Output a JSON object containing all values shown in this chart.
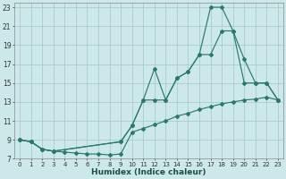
{
  "xlabel": "Humidex (Indice chaleur)",
  "bg_color": "#cce8e8",
  "grid_color": "#aacccc",
  "line_color": "#2a7a6a",
  "xlim": [
    -0.5,
    23.5
  ],
  "ylim": [
    7,
    23.5
  ],
  "yticks": [
    7,
    9,
    11,
    13,
    15,
    17,
    19,
    21,
    23
  ],
  "xticks": [
    0,
    1,
    2,
    3,
    4,
    5,
    6,
    7,
    8,
    9,
    10,
    11,
    12,
    13,
    14,
    15,
    16,
    17,
    18,
    19,
    20,
    21,
    22,
    23
  ],
  "line1_x": [
    0,
    1,
    2,
    3,
    4,
    5,
    6,
    7,
    8,
    9,
    10,
    11,
    12,
    13,
    14,
    15,
    16,
    17,
    18,
    19,
    20,
    21,
    22,
    23
  ],
  "line1_y": [
    9.0,
    8.8,
    8.0,
    7.8,
    7.7,
    7.6,
    7.5,
    7.5,
    7.4,
    7.5,
    9.8,
    10.2,
    10.6,
    11.0,
    11.5,
    11.8,
    12.2,
    12.5,
    12.8,
    13.0,
    13.2,
    13.3,
    13.5,
    13.2
  ],
  "line2_x": [
    0,
    1,
    2,
    3,
    9,
    10,
    11,
    12,
    13,
    14,
    15,
    16,
    17,
    18,
    19,
    20,
    21,
    22,
    23
  ],
  "line2_y": [
    9.0,
    8.8,
    8.0,
    7.8,
    8.8,
    10.5,
    13.2,
    16.5,
    13.2,
    15.5,
    16.2,
    18.0,
    23.0,
    23.0,
    20.5,
    15.0,
    15.0,
    15.0,
    13.2
  ],
  "line3_x": [
    0,
    1,
    2,
    3,
    9,
    10,
    11,
    12,
    13,
    14,
    15,
    16,
    17,
    18,
    19,
    20,
    21,
    22,
    23
  ],
  "line3_y": [
    9.0,
    8.8,
    8.0,
    7.8,
    8.8,
    10.5,
    13.2,
    13.2,
    13.2,
    15.5,
    16.2,
    18.0,
    18.0,
    20.5,
    20.5,
    17.5,
    15.0,
    15.0,
    13.2
  ]
}
